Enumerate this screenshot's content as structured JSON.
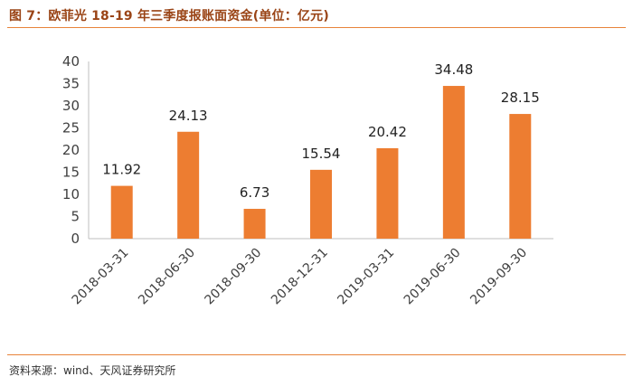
{
  "figure": {
    "title": "图 7：欧菲光 18-19 年三季度报账面资金(单位：亿元)",
    "source": "资料来源：wind、天风证券研究所"
  },
  "colors": {
    "bar": "#ed7d31",
    "accent": "#e8833a",
    "axis": "#bfbfbf"
  },
  "chart_data": {
    "type": "bar",
    "title": "",
    "xlabel": "",
    "ylabel": "",
    "categories": [
      "2018-03-31",
      "2018-06-30",
      "2018-09-30",
      "2018-12-31",
      "2019-03-31",
      "2019-06-30",
      "2019-09-30"
    ],
    "values": [
      11.92,
      24.13,
      6.73,
      15.54,
      20.42,
      34.48,
      28.15
    ],
    "value_labels": [
      "11.92",
      "24.13",
      "6.73",
      "15.54",
      "20.42",
      "34.48",
      "28.15"
    ],
    "ylim": [
      0,
      40
    ],
    "yticks": [
      0,
      5,
      10,
      15,
      20,
      25,
      30,
      35,
      40
    ],
    "grid": false,
    "legend": "none"
  }
}
